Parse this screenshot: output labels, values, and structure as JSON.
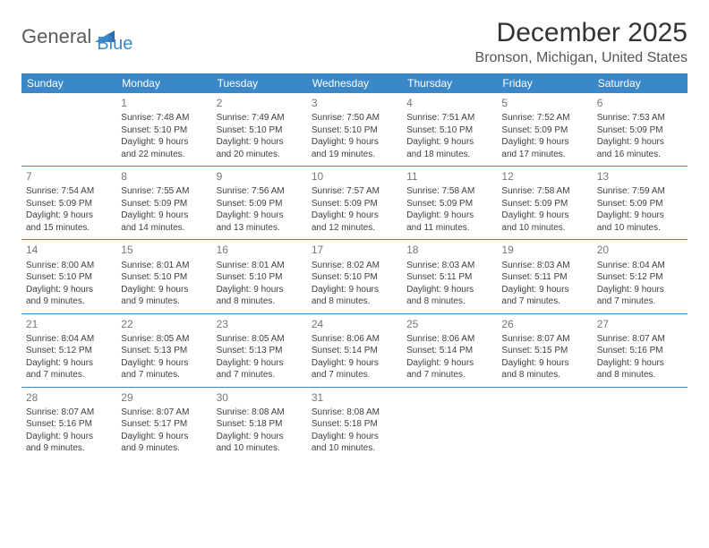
{
  "logo": {
    "word1": "General",
    "word2": "Blue"
  },
  "title": "December 2025",
  "location": "Bronson, Michigan, United States",
  "weekdays": [
    "Sunday",
    "Monday",
    "Tuesday",
    "Wednesday",
    "Thursday",
    "Friday",
    "Saturday"
  ],
  "colors": {
    "header_bg": "#3a88c7",
    "header_text": "#ffffff",
    "rule": "#3a88c7",
    "daynum": "#777777",
    "body_text": "#404040"
  },
  "weeks": [
    [
      null,
      {
        "n": "1",
        "sr": "Sunrise: 7:48 AM",
        "ss": "Sunset: 5:10 PM",
        "d1": "Daylight: 9 hours",
        "d2": "and 22 minutes."
      },
      {
        "n": "2",
        "sr": "Sunrise: 7:49 AM",
        "ss": "Sunset: 5:10 PM",
        "d1": "Daylight: 9 hours",
        "d2": "and 20 minutes."
      },
      {
        "n": "3",
        "sr": "Sunrise: 7:50 AM",
        "ss": "Sunset: 5:10 PM",
        "d1": "Daylight: 9 hours",
        "d2": "and 19 minutes."
      },
      {
        "n": "4",
        "sr": "Sunrise: 7:51 AM",
        "ss": "Sunset: 5:10 PM",
        "d1": "Daylight: 9 hours",
        "d2": "and 18 minutes."
      },
      {
        "n": "5",
        "sr": "Sunrise: 7:52 AM",
        "ss": "Sunset: 5:09 PM",
        "d1": "Daylight: 9 hours",
        "d2": "and 17 minutes."
      },
      {
        "n": "6",
        "sr": "Sunrise: 7:53 AM",
        "ss": "Sunset: 5:09 PM",
        "d1": "Daylight: 9 hours",
        "d2": "and 16 minutes."
      }
    ],
    [
      {
        "n": "7",
        "sr": "Sunrise: 7:54 AM",
        "ss": "Sunset: 5:09 PM",
        "d1": "Daylight: 9 hours",
        "d2": "and 15 minutes."
      },
      {
        "n": "8",
        "sr": "Sunrise: 7:55 AM",
        "ss": "Sunset: 5:09 PM",
        "d1": "Daylight: 9 hours",
        "d2": "and 14 minutes."
      },
      {
        "n": "9",
        "sr": "Sunrise: 7:56 AM",
        "ss": "Sunset: 5:09 PM",
        "d1": "Daylight: 9 hours",
        "d2": "and 13 minutes."
      },
      {
        "n": "10",
        "sr": "Sunrise: 7:57 AM",
        "ss": "Sunset: 5:09 PM",
        "d1": "Daylight: 9 hours",
        "d2": "and 12 minutes."
      },
      {
        "n": "11",
        "sr": "Sunrise: 7:58 AM",
        "ss": "Sunset: 5:09 PM",
        "d1": "Daylight: 9 hours",
        "d2": "and 11 minutes."
      },
      {
        "n": "12",
        "sr": "Sunrise: 7:58 AM",
        "ss": "Sunset: 5:09 PM",
        "d1": "Daylight: 9 hours",
        "d2": "and 10 minutes."
      },
      {
        "n": "13",
        "sr": "Sunrise: 7:59 AM",
        "ss": "Sunset: 5:09 PM",
        "d1": "Daylight: 9 hours",
        "d2": "and 10 minutes."
      }
    ],
    [
      {
        "n": "14",
        "sr": "Sunrise: 8:00 AM",
        "ss": "Sunset: 5:10 PM",
        "d1": "Daylight: 9 hours",
        "d2": "and 9 minutes."
      },
      {
        "n": "15",
        "sr": "Sunrise: 8:01 AM",
        "ss": "Sunset: 5:10 PM",
        "d1": "Daylight: 9 hours",
        "d2": "and 9 minutes."
      },
      {
        "n": "16",
        "sr": "Sunrise: 8:01 AM",
        "ss": "Sunset: 5:10 PM",
        "d1": "Daylight: 9 hours",
        "d2": "and 8 minutes."
      },
      {
        "n": "17",
        "sr": "Sunrise: 8:02 AM",
        "ss": "Sunset: 5:10 PM",
        "d1": "Daylight: 9 hours",
        "d2": "and 8 minutes."
      },
      {
        "n": "18",
        "sr": "Sunrise: 8:03 AM",
        "ss": "Sunset: 5:11 PM",
        "d1": "Daylight: 9 hours",
        "d2": "and 8 minutes."
      },
      {
        "n": "19",
        "sr": "Sunrise: 8:03 AM",
        "ss": "Sunset: 5:11 PM",
        "d1": "Daylight: 9 hours",
        "d2": "and 7 minutes."
      },
      {
        "n": "20",
        "sr": "Sunrise: 8:04 AM",
        "ss": "Sunset: 5:12 PM",
        "d1": "Daylight: 9 hours",
        "d2": "and 7 minutes."
      }
    ],
    [
      {
        "n": "21",
        "sr": "Sunrise: 8:04 AM",
        "ss": "Sunset: 5:12 PM",
        "d1": "Daylight: 9 hours",
        "d2": "and 7 minutes."
      },
      {
        "n": "22",
        "sr": "Sunrise: 8:05 AM",
        "ss": "Sunset: 5:13 PM",
        "d1": "Daylight: 9 hours",
        "d2": "and 7 minutes."
      },
      {
        "n": "23",
        "sr": "Sunrise: 8:05 AM",
        "ss": "Sunset: 5:13 PM",
        "d1": "Daylight: 9 hours",
        "d2": "and 7 minutes."
      },
      {
        "n": "24",
        "sr": "Sunrise: 8:06 AM",
        "ss": "Sunset: 5:14 PM",
        "d1": "Daylight: 9 hours",
        "d2": "and 7 minutes."
      },
      {
        "n": "25",
        "sr": "Sunrise: 8:06 AM",
        "ss": "Sunset: 5:14 PM",
        "d1": "Daylight: 9 hours",
        "d2": "and 7 minutes."
      },
      {
        "n": "26",
        "sr": "Sunrise: 8:07 AM",
        "ss": "Sunset: 5:15 PM",
        "d1": "Daylight: 9 hours",
        "d2": "and 8 minutes."
      },
      {
        "n": "27",
        "sr": "Sunrise: 8:07 AM",
        "ss": "Sunset: 5:16 PM",
        "d1": "Daylight: 9 hours",
        "d2": "and 8 minutes."
      }
    ],
    [
      {
        "n": "28",
        "sr": "Sunrise: 8:07 AM",
        "ss": "Sunset: 5:16 PM",
        "d1": "Daylight: 9 hours",
        "d2": "and 9 minutes."
      },
      {
        "n": "29",
        "sr": "Sunrise: 8:07 AM",
        "ss": "Sunset: 5:17 PM",
        "d1": "Daylight: 9 hours",
        "d2": "and 9 minutes."
      },
      {
        "n": "30",
        "sr": "Sunrise: 8:08 AM",
        "ss": "Sunset: 5:18 PM",
        "d1": "Daylight: 9 hours",
        "d2": "and 10 minutes."
      },
      {
        "n": "31",
        "sr": "Sunrise: 8:08 AM",
        "ss": "Sunset: 5:18 PM",
        "d1": "Daylight: 9 hours",
        "d2": "and 10 minutes."
      },
      null,
      null,
      null
    ]
  ]
}
